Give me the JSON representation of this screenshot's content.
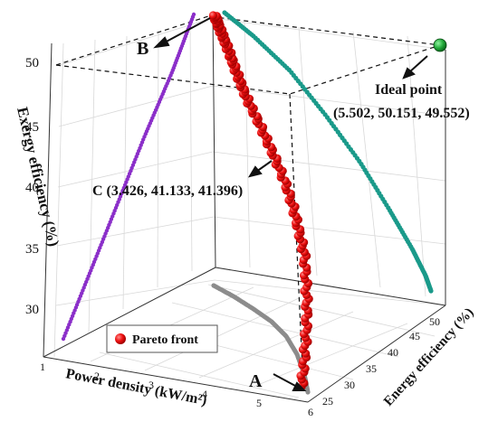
{
  "chart_data": {
    "type": "scatter",
    "subtype": "3d-scatter",
    "title": "",
    "axes": {
      "x": {
        "label": "Power density (kW/m²)",
        "ticks": [
          "1",
          "2",
          "3",
          "4",
          "5",
          "6"
        ],
        "range": [
          1,
          6
        ]
      },
      "y": {
        "label": "Energy efficiency (%)",
        "ticks": [
          "25",
          "30",
          "35",
          "40",
          "45",
          "50"
        ],
        "range": [
          22,
          52
        ]
      },
      "z": {
        "label": "Exergy efficiency (%)",
        "ticks": [
          "30",
          "35",
          "40",
          "45",
          "50"
        ],
        "range": [
          26,
          51
        ]
      }
    },
    "grid": true,
    "legend": {
      "placement": "bottom-left",
      "entries": [
        "Pareto front"
      ]
    },
    "series": [
      {
        "name": "Pareto front",
        "color": "#e41a1c",
        "points": [
          [
            5.2,
            24.5,
            29.6
          ],
          [
            5.15,
            25.2,
            30.4
          ],
          [
            5.1,
            26.1,
            31.3
          ],
          [
            5.04,
            27.0,
            32.2
          ],
          [
            4.98,
            27.9,
            33.1
          ],
          [
            4.9,
            28.8,
            34.0
          ],
          [
            4.82,
            29.6,
            34.9
          ],
          [
            4.74,
            30.5,
            35.8
          ],
          [
            4.65,
            31.4,
            36.7
          ],
          [
            4.56,
            32.3,
            37.6
          ],
          [
            4.46,
            33.1,
            38.5
          ],
          [
            4.36,
            34.0,
            39.4
          ],
          [
            4.25,
            34.9,
            40.2
          ],
          [
            3.43,
            41.1,
            41.4
          ],
          [
            3.3,
            41.8,
            42.0
          ],
          [
            3.1,
            42.7,
            42.8
          ],
          [
            2.9,
            43.6,
            43.7
          ],
          [
            2.7,
            44.4,
            44.5
          ],
          [
            2.5,
            45.2,
            45.3
          ],
          [
            2.3,
            45.9,
            46.1
          ],
          [
            2.1,
            46.6,
            46.9
          ],
          [
            1.9,
            47.3,
            47.7
          ],
          [
            1.7,
            47.9,
            48.5
          ],
          [
            1.5,
            48.6,
            49.2
          ],
          [
            1.3,
            49.3,
            49.9
          ]
        ]
      }
    ],
    "projections": [
      {
        "plane": "x-z",
        "color": "#8b2fc9"
      },
      {
        "plane": "y-z",
        "color": "#1a9a8a"
      },
      {
        "plane": "x-y",
        "color": "#8c8c8c"
      }
    ],
    "annotations": [
      {
        "id": "A",
        "text": "A"
      },
      {
        "id": "B",
        "text": "B"
      },
      {
        "id": "C",
        "text": "C (3.426, 41.133, 41.396)"
      },
      {
        "id": "ideal",
        "text": "Ideal point",
        "coords": "(5.502, 50.151, 49.552)"
      }
    ],
    "ideal_point_color": "#1a9e3a"
  }
}
